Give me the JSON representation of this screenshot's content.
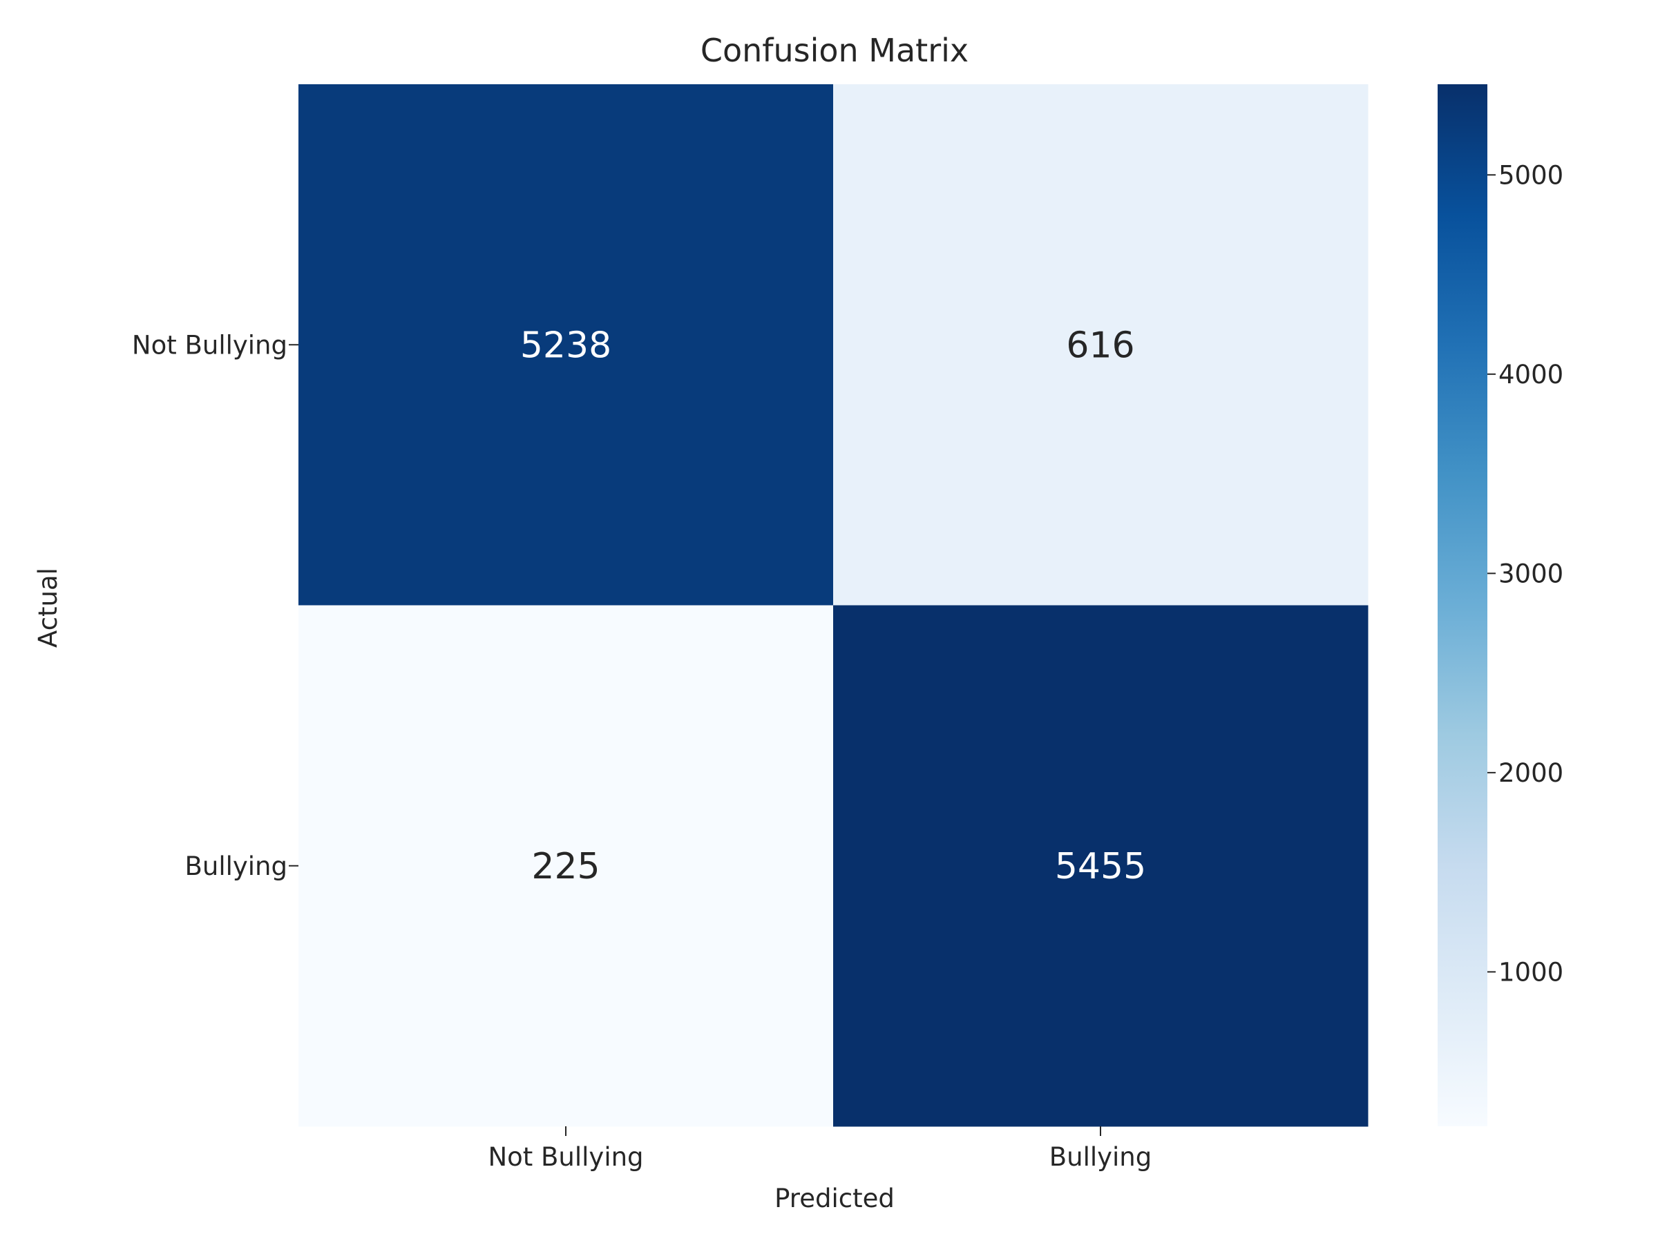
{
  "chart_data": {
    "type": "heatmap",
    "title": "Confusion Matrix",
    "xlabel": "Predicted",
    "ylabel": "Actual",
    "x_categories": [
      "Not Bullying",
      "Bullying"
    ],
    "y_categories": [
      "Not Bullying",
      "Bullying"
    ],
    "values": [
      [
        5238,
        616
      ],
      [
        225,
        5455
      ]
    ],
    "colormap": "Blues",
    "color_range": [
      225,
      5455
    ],
    "colorbar_ticks": [
      1000,
      2000,
      3000,
      4000,
      5000
    ],
    "grid": false,
    "legend": "colorbar-right"
  }
}
